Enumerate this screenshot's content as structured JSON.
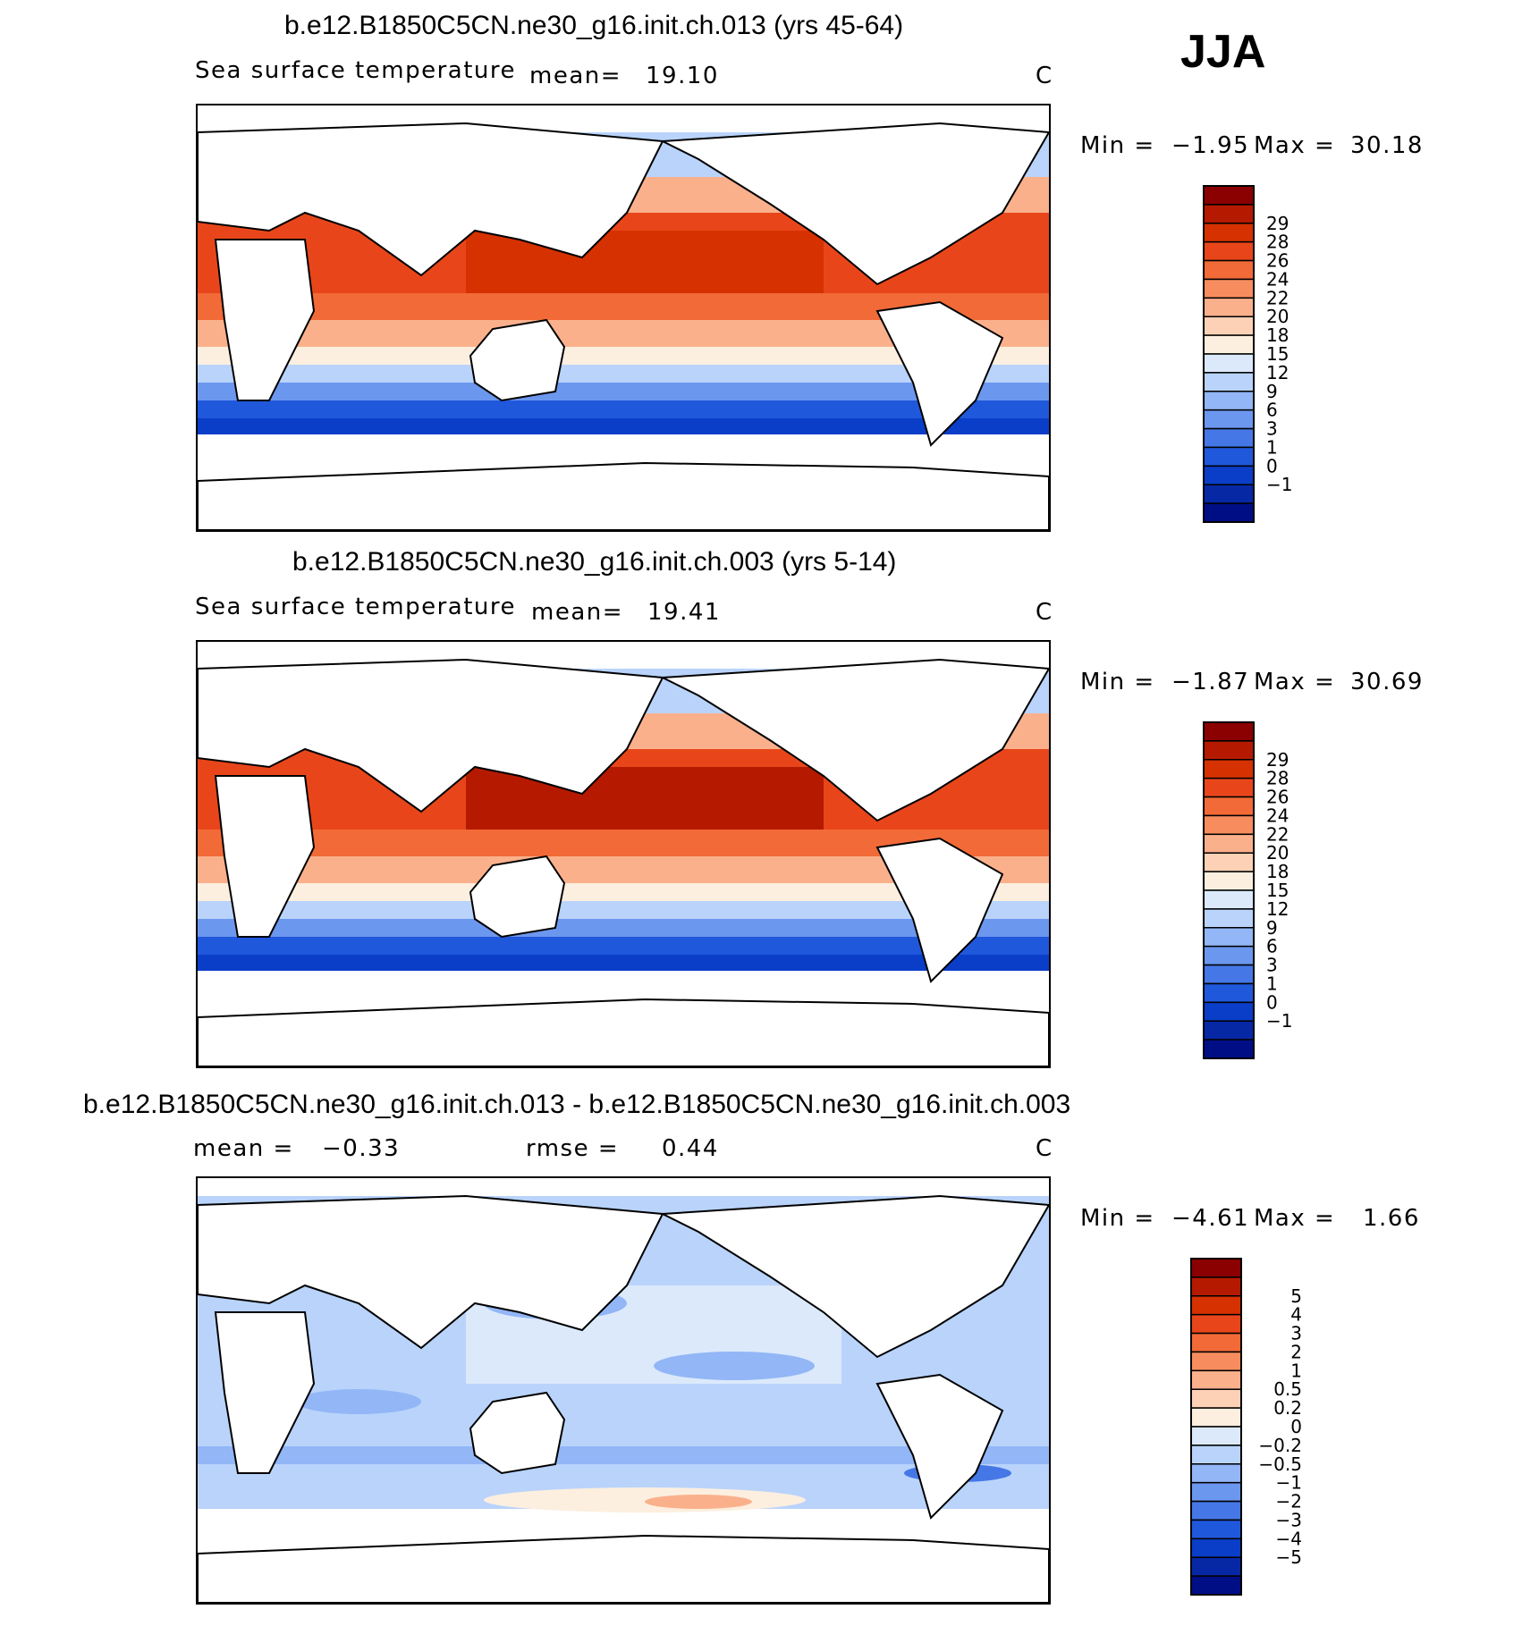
{
  "season": "JJA",
  "chart_data": [
    {
      "type": "heatmap",
      "title": "b.e12.B1850C5CN.ne30_g16.init.ch.013 (yrs 45-64)",
      "variable": "Sea surface temperature",
      "mean_label": "mean=",
      "mean": "19.10",
      "units": "C",
      "min_label": "Min =",
      "min": "−1.95",
      "max_label": "Max =",
      "max": "30.18",
      "colorbar": {
        "labels": [
          "29",
          "28",
          "26",
          "24",
          "22",
          "20",
          "18",
          "15",
          "12",
          "9",
          "6",
          "3",
          "1",
          "0",
          "−1"
        ],
        "colors": [
          "#8b0000",
          "#b51a00",
          "#d63100",
          "#e8461a",
          "#f26a37",
          "#f78d5e",
          "#fbb08c",
          "#fdd1b5",
          "#fcefdf",
          "#dbe9fb",
          "#b9d3fb",
          "#92b6f6",
          "#6c97ef",
          "#4577e6",
          "#2058dc",
          "#0a3ec8",
          "#0628a5",
          "#000e86"
        ]
      }
    },
    {
      "type": "heatmap",
      "title": "b.e12.B1850C5CN.ne30_g16.init.ch.003 (yrs 5-14)",
      "variable": "Sea surface temperature",
      "mean_label": "mean=",
      "mean": "19.41",
      "units": "C",
      "min_label": "Min =",
      "min": "−1.87",
      "max_label": "Max =",
      "max": "30.69",
      "colorbar": {
        "labels": [
          "29",
          "28",
          "26",
          "24",
          "22",
          "20",
          "18",
          "15",
          "12",
          "9",
          "6",
          "3",
          "1",
          "0",
          "−1"
        ],
        "colors": [
          "#8b0000",
          "#b51a00",
          "#d63100",
          "#e8461a",
          "#f26a37",
          "#f78d5e",
          "#fbb08c",
          "#fdd1b5",
          "#fcefdf",
          "#dbe9fb",
          "#b9d3fb",
          "#92b6f6",
          "#6c97ef",
          "#4577e6",
          "#2058dc",
          "#0a3ec8",
          "#0628a5",
          "#000e86"
        ]
      }
    },
    {
      "type": "heatmap",
      "title": "b.e12.B1850C5CN.ne30_g16.init.ch.013 - b.e12.B1850C5CN.ne30_g16.init.ch.003",
      "mean_label": "mean =",
      "mean": "−0.33",
      "rmse_label": "rmse =",
      "rmse": "0.44",
      "units": "C",
      "min_label": "Min =",
      "min": "−4.61",
      "max_label": "Max =",
      "max": "1.66",
      "colorbar": {
        "labels": [
          "5",
          "4",
          "3",
          "2",
          "1",
          "0.5",
          "0.2",
          "0",
          "−0.2",
          "−0.5",
          "−1",
          "−2",
          "−3",
          "−4",
          "−5"
        ],
        "colors": [
          "#8b0000",
          "#b51a00",
          "#d63100",
          "#e8461a",
          "#f26a37",
          "#f78d5e",
          "#fbb08c",
          "#fdd1b5",
          "#fcefdf",
          "#dbe9fb",
          "#b9d3fb",
          "#92b6f6",
          "#6c97ef",
          "#4577e6",
          "#2058dc",
          "#0a3ec8",
          "#0628a5",
          "#000e86"
        ]
      }
    }
  ]
}
